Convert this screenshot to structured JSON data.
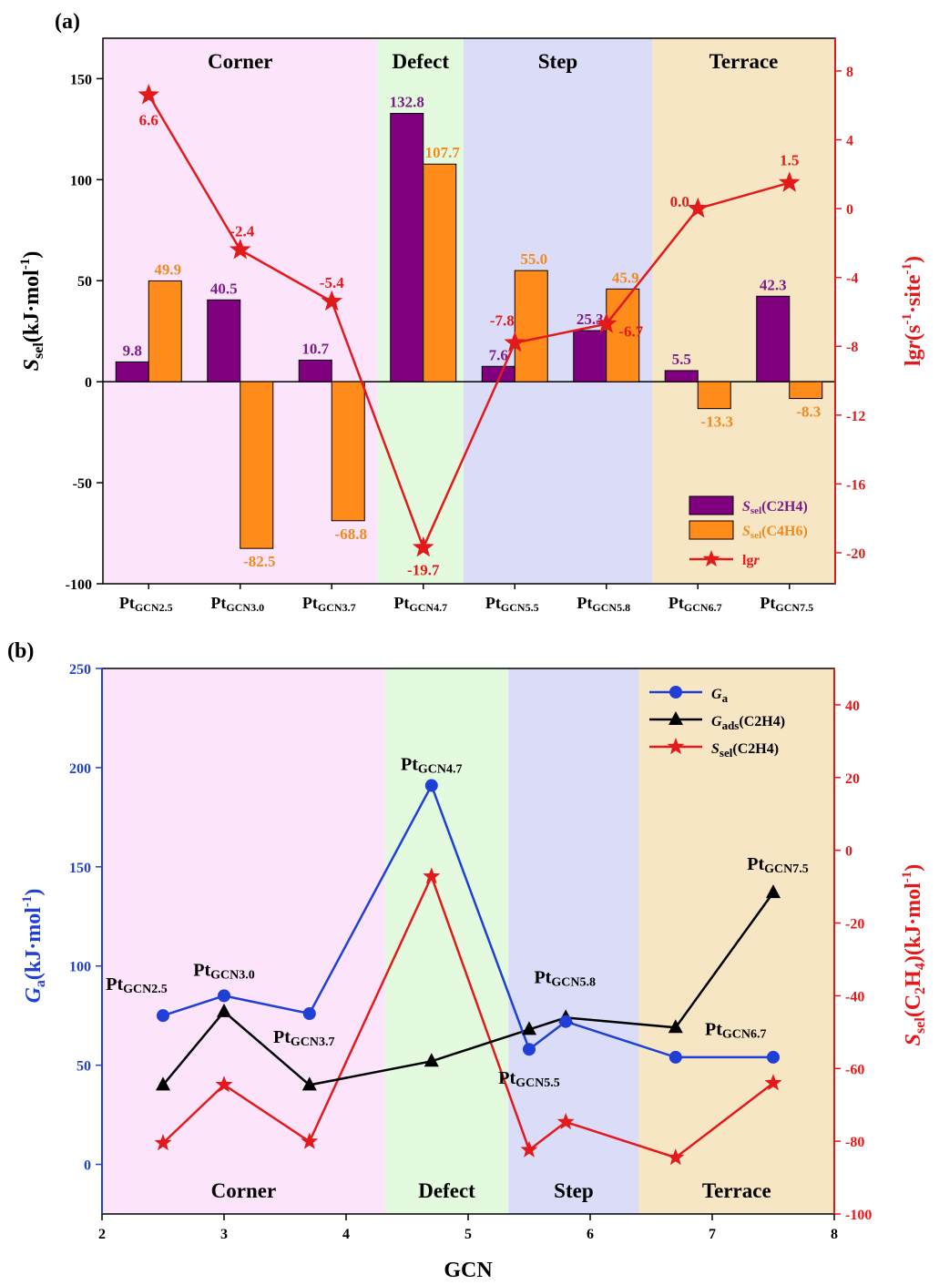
{
  "chart_data": [
    {
      "type": "bar",
      "panel": "(a)",
      "categories": [
        "PtGCN2.5",
        "PtGCN3.0",
        "PtGCN3.7",
        "PtGCN4.7",
        "PtGCN5.5",
        "PtGCN5.8",
        "PtGCN6.7",
        "PtGCN7.5"
      ],
      "category_parts": [
        {
          "main": "Pt",
          "sub": "GCN2.5"
        },
        {
          "main": "Pt",
          "sub": "GCN3.0"
        },
        {
          "main": "Pt",
          "sub": "GCN3.7"
        },
        {
          "main": "Pt",
          "sub": "GCN4.7"
        },
        {
          "main": "Pt",
          "sub": "GCN5.5"
        },
        {
          "main": "Pt",
          "sub": "GCN5.8"
        },
        {
          "main": "Pt",
          "sub": "GCN6.7"
        },
        {
          "main": "Pt",
          "sub": "GCN7.5"
        }
      ],
      "regions": [
        {
          "name": "Corner",
          "start": -0.5,
          "end": 2.5,
          "color": "#fce4fb"
        },
        {
          "name": "Defect",
          "start": 2.5,
          "end": 3.5,
          "color": "#e3fadf"
        },
        {
          "name": "Step",
          "start": 3.5,
          "end": 5.5,
          "color": "#dbdcf8"
        },
        {
          "name": "Terrace",
          "start": 5.5,
          "end": 7.5,
          "color": "#f7e6c4"
        }
      ],
      "series": [
        {
          "name": "Ssel(C2H4)",
          "label_main": "S",
          "label_sub": "sel",
          "label_rest": "(C2H4)",
          "axis": "left",
          "color": "#800080",
          "values": [
            9.8,
            40.5,
            10.7,
            132.8,
            7.6,
            25.3,
            5.5,
            42.3
          ]
        },
        {
          "name": "Ssel(C4H6)",
          "label_main": "S",
          "label_sub": "sel",
          "label_rest": "(C4H6)",
          "axis": "left",
          "color": "#ff8c1a",
          "values": [
            49.9,
            -82.5,
            -68.8,
            107.7,
            55.0,
            45.9,
            -13.3,
            -8.3
          ]
        },
        {
          "name": "lgr",
          "label_main": "lg",
          "label_sub": "",
          "label_rest": "r",
          "axis": "right",
          "color": "#e31a1c",
          "values": [
            6.6,
            -2.4,
            -5.4,
            -19.7,
            -7.8,
            -6.7,
            0.0,
            1.5
          ]
        }
      ],
      "purple_labels": [
        "9.8",
        "40.5",
        "10.7",
        "132.8",
        "7.6",
        "25.3",
        "5.5",
        "42.3"
      ],
      "orange_labels": [
        "49.9",
        "-82.5",
        "-68.8",
        "107.7",
        "55.0",
        "45.9",
        "-13.3",
        "-8.3"
      ],
      "red_labels": [
        "6.6",
        "-2.4",
        "-5.4",
        "-19.7",
        "-7.8",
        "-6.7",
        "0.0",
        "1.5"
      ],
      "ylabel_left": {
        "main": "S",
        "sub": "sel",
        "rest": "(kJ·mol",
        "sup": "-1",
        "close": ")"
      },
      "ylabel_right": {
        "main": "lg",
        "italic": "r",
        "rest": "(s",
        "sup1": "-1",
        "mid": "·site",
        "sup2": "-1",
        "close": ")"
      },
      "ylim_left": [
        -100,
        170
      ],
      "yticks_left": [
        -100,
        -50,
        0,
        50,
        100,
        150
      ],
      "ylim_right": [
        -21.8,
        9.9
      ],
      "yticks_right": [
        -20,
        -16,
        -12,
        -8,
        -4,
        0,
        4,
        8
      ]
    },
    {
      "type": "line",
      "panel": "(b)",
      "x": [
        2.5,
        3.0,
        3.7,
        4.7,
        5.5,
        5.8,
        6.7,
        7.5
      ],
      "regions": [
        {
          "name": "Corner",
          "start": 2.0,
          "end": 4.32,
          "color": "#fce4fb"
        },
        {
          "name": "Defect",
          "start": 4.32,
          "end": 5.33,
          "color": "#e3fadf"
        },
        {
          "name": "Step",
          "start": 5.33,
          "end": 6.4,
          "color": "#dbdcf8"
        },
        {
          "name": "Terrace",
          "start": 6.4,
          "end": 8.0,
          "color": "#f7e6c4"
        }
      ],
      "series": [
        {
          "name": "Ga",
          "label_main": "G",
          "label_sub": "a",
          "label_rest": "",
          "axis": "left",
          "color": "#1f3fd6",
          "marker": "circle",
          "values": [
            75,
            85,
            76,
            191,
            58,
            72,
            54,
            54
          ]
        },
        {
          "name": "Gads(C2H4)",
          "label_main": "G",
          "label_sub": "ads",
          "label_rest": "(C2H4)",
          "axis": "left",
          "color": "#000000",
          "marker": "triangle",
          "values": [
            40,
            77,
            40,
            52,
            68,
            74,
            69,
            137
          ]
        },
        {
          "name": "Ssel(C2H4)",
          "label_main": "S",
          "label_sub": "sel",
          "label_rest": "(C2H4)",
          "axis": "right",
          "color": "#e31a1c",
          "marker": "star",
          "values": [
            -80.5,
            -64.5,
            -80.1,
            -7.2,
            -82.4,
            -74.7,
            -84.5,
            -64.0
          ]
        }
      ],
      "point_labels": [
        {
          "main": "Pt",
          "sub": "GCN2.5"
        },
        {
          "main": "Pt",
          "sub": "GCN3.0"
        },
        {
          "main": "Pt",
          "sub": "GCN3.7"
        },
        {
          "main": "Pt",
          "sub": "GCN4.7"
        },
        {
          "main": "Pt",
          "sub": "GCN5.5"
        },
        {
          "main": "Pt",
          "sub": "GCN5.8"
        },
        {
          "main": "Pt",
          "sub": "GCN6.7"
        },
        {
          "main": "Pt",
          "sub": "GCN7.5"
        }
      ],
      "xlabel": "GCN",
      "xlim": [
        2,
        8
      ],
      "xticks": [
        2,
        3,
        4,
        5,
        6,
        7,
        8
      ],
      "ylabel_left": {
        "main": "G",
        "sub": "a",
        "rest": "(kJ·mol",
        "sup": "-1",
        "close": ")"
      },
      "ylabel_right": {
        "main": "S",
        "sub": "sel",
        "rest": "(C",
        "sub2": "2",
        "mid": "H",
        "sub3": "4",
        "rest2": ")(kJ·mol",
        "sup": "-1",
        "close": ")"
      },
      "ylim_left": [
        -25,
        250
      ],
      "yticks_left": [
        0,
        50,
        100,
        150,
        200,
        250
      ],
      "ylim_right": [
        -100,
        50
      ],
      "yticks_right": [
        -100,
        -80,
        -60,
        -40,
        -20,
        0,
        20,
        40
      ]
    }
  ]
}
